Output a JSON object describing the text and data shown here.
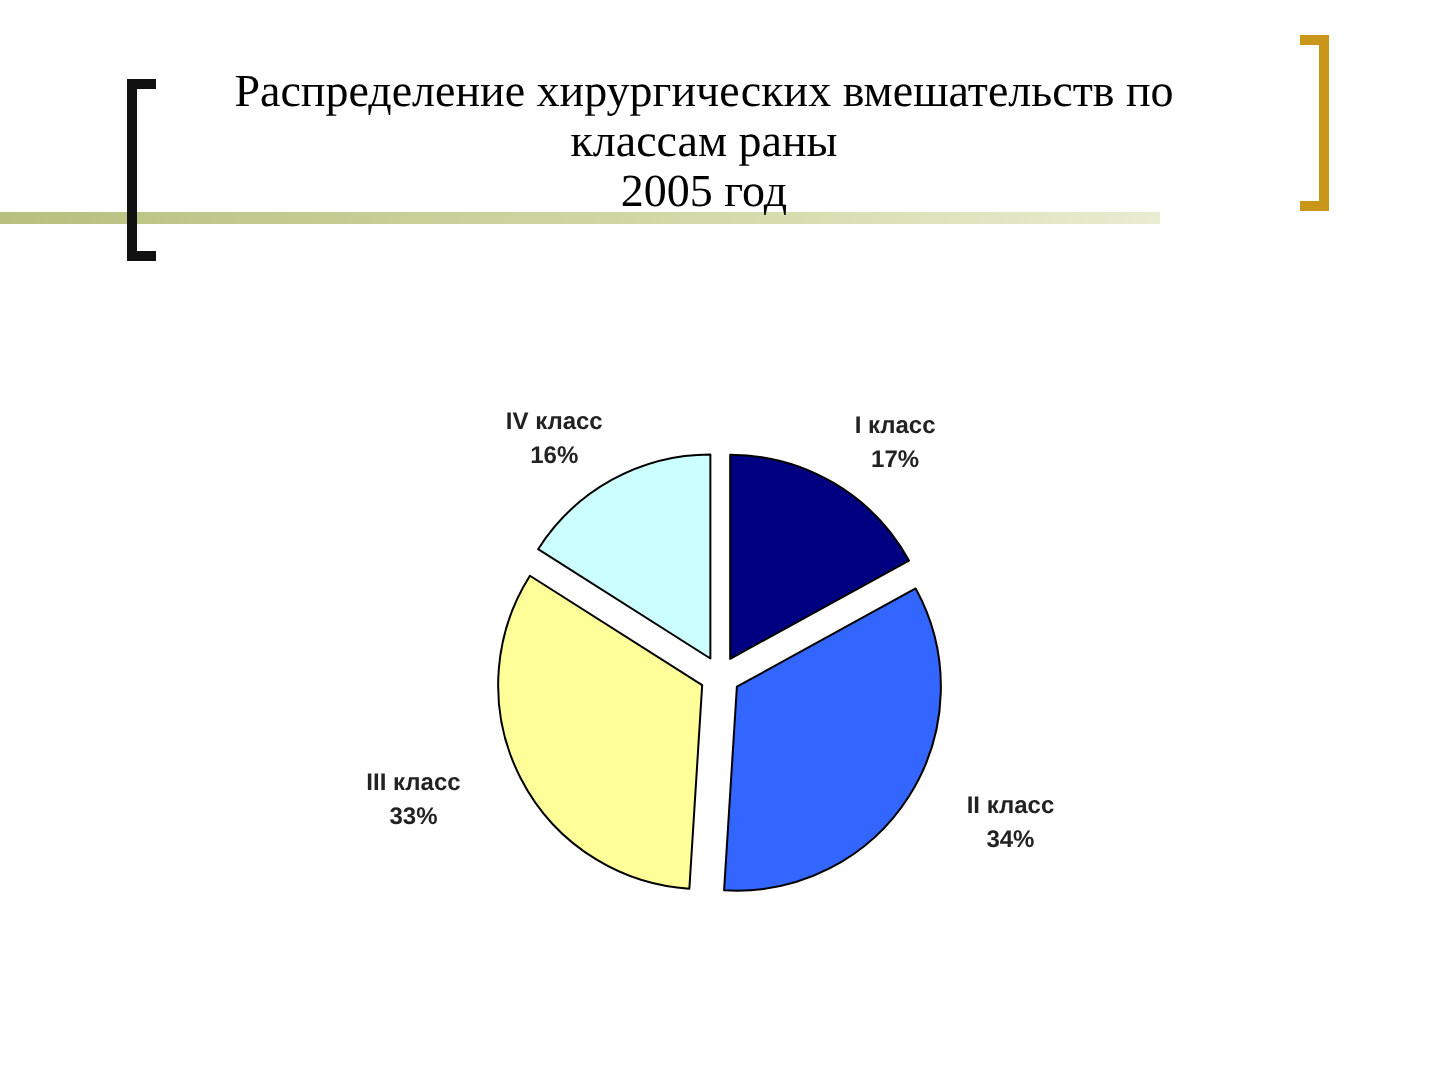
{
  "chart_data": {
    "type": "pie",
    "title": "Распределение хирургических вмешательств по классам раны",
    "subtitle": "2005 год",
    "categories": [
      "I класс",
      "II класс",
      "III класс",
      "IV класс"
    ],
    "values": [
      17,
      34,
      33,
      16
    ],
    "colors": [
      "#000080",
      "#3366ff",
      "#ffff99",
      "#ccffff"
    ],
    "value_labels": [
      "17%",
      "34%",
      "33%",
      "16%"
    ]
  }
}
